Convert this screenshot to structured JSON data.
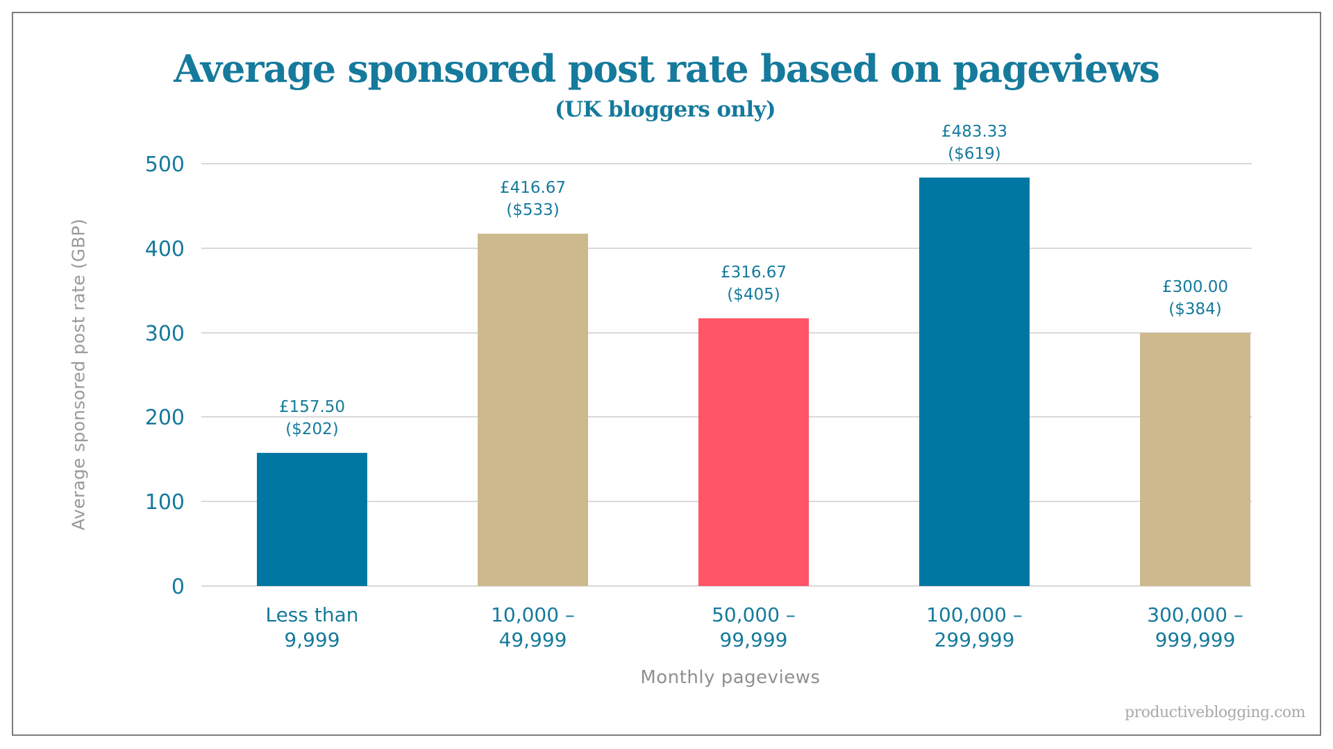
{
  "colors": {
    "teal": "#0077a3",
    "gold": "#cdb98e",
    "coral": "#ff5566",
    "text_blue": "#157a9c",
    "axis_gray": "#9a9a9a",
    "grid": "#d9d9d9"
  },
  "watermark": "productiveblogging.com",
  "chart_data": {
    "type": "bar",
    "title": "Average sponsored post rate based on pageviews",
    "subtitle": "(UK bloggers only)",
    "xlabel": "Monthly pageviews",
    "ylabel": "Average sponsored post rate (GBP)",
    "ylim": [
      0,
      500
    ],
    "yticks": [
      "0",
      "100",
      "200",
      "300",
      "400",
      "500"
    ],
    "grid": true,
    "legend": "none",
    "categories": [
      "Less than 9,999",
      "10,000 – 49,999",
      "50,000 – 99,999",
      "100,000 – 299,999",
      "300,000 – 999,999"
    ],
    "category_lines": [
      [
        "Less than",
        "9,999"
      ],
      [
        "10,000 –",
        "49,999"
      ],
      [
        "50,000 –",
        "99,999"
      ],
      [
        "100,000 –",
        "299,999"
      ],
      [
        "300,000 –",
        "999,999"
      ]
    ],
    "values": [
      157.5,
      416.67,
      316.67,
      483.33,
      300.0
    ],
    "usd_values": [
      202,
      533,
      405,
      619,
      384
    ],
    "data_labels": [
      [
        "£157.50",
        "($202)"
      ],
      [
        "£416.67",
        "($533)"
      ],
      [
        "£316.67",
        "($405)"
      ],
      [
        "£483.33",
        "($619)"
      ],
      [
        "£300.00",
        "($384)"
      ]
    ],
    "bar_colors": [
      "#0077a3",
      "#cdb98e",
      "#ff5566",
      "#0077a3",
      "#cdb98e"
    ]
  }
}
